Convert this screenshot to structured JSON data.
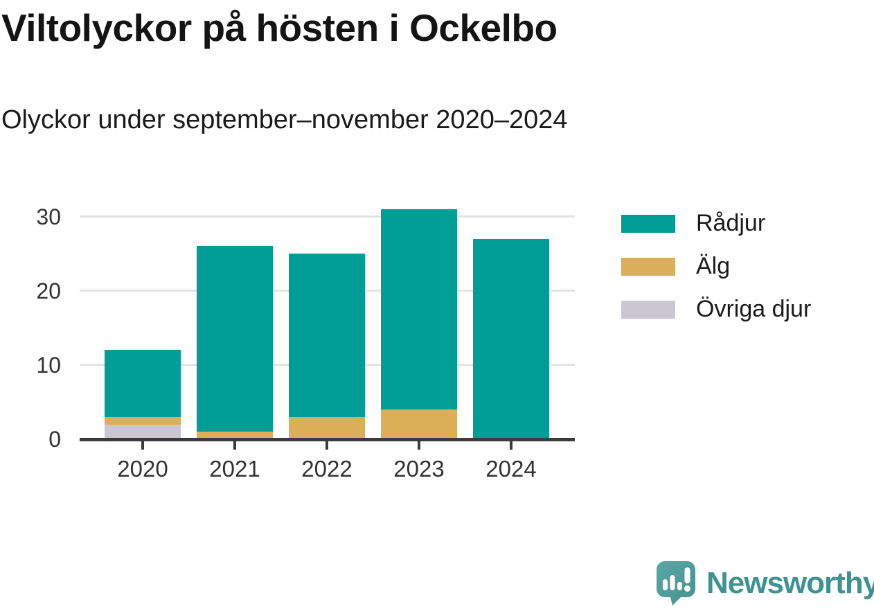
{
  "header": {
    "title": "Viltolyckor på hösten i Ockelbo",
    "subtitle": "Olyckor under september–november 2020–2024"
  },
  "chart_data": {
    "type": "bar",
    "stacked": true,
    "title": "Viltolyckor på hösten i Ockelbo",
    "subtitle": "Olyckor under september–november 2020–2024",
    "categories": [
      "2020",
      "2021",
      "2022",
      "2023",
      "2024"
    ],
    "series": [
      {
        "name": "Rådjur",
        "color": "#009E96",
        "values": [
          9,
          25,
          22,
          27,
          27
        ]
      },
      {
        "name": "Älg",
        "color": "#DBAE58",
        "values": [
          1,
          1,
          3,
          4,
          0
        ]
      },
      {
        "name": "Övriga djur",
        "color": "#CAC7D3",
        "values": [
          2,
          0,
          0,
          0,
          0
        ]
      }
    ],
    "stack_order_bottom_to_top": [
      "Övriga djur",
      "Älg",
      "Rådjur"
    ],
    "totals": [
      12,
      26,
      25,
      31,
      27
    ],
    "xlabel": "",
    "ylabel": "",
    "ylim": [
      0,
      33.6
    ],
    "yticks": [
      0,
      10,
      20,
      30
    ],
    "grid": "horizontal-light",
    "legend_position": "right"
  },
  "colors": {
    "axis": "#3B3B3B",
    "gridline": "#E3E3E3",
    "tick_label": "#333333",
    "title_text": "#141414"
  },
  "branding": {
    "wordmark": "Newsworthy",
    "logo_icon": "speech-bubble-bar-chart-icon",
    "wordmark_color": "#3F9292",
    "icon_color": "#54A5A2"
  }
}
